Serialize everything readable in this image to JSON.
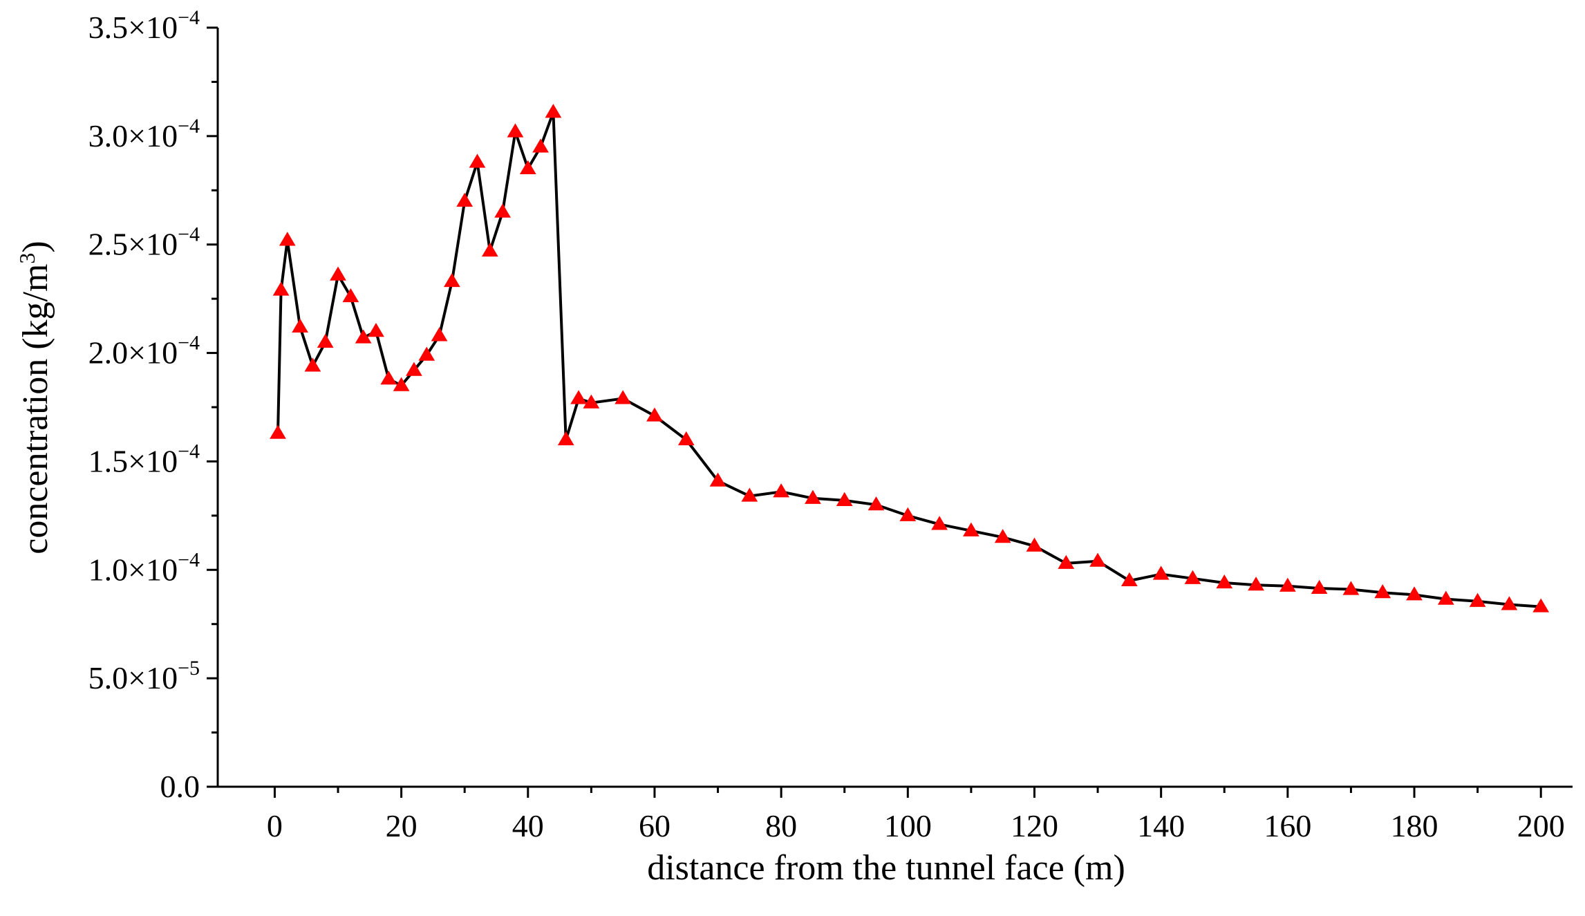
{
  "chart_data": {
    "type": "line",
    "xlabel": "distance from the tunnel face (m)",
    "ylabel_main": "concentration (kg/m",
    "ylabel_sup": "3",
    "ylabel_close": ")",
    "xlim": [
      -9,
      205
    ],
    "ylim": [
      0,
      0.00035
    ],
    "x_ticks": [
      0,
      20,
      40,
      60,
      80,
      100,
      120,
      140,
      160,
      180,
      200
    ],
    "y_ticks": [
      {
        "value": 0,
        "label": "0.0",
        "exp": ""
      },
      {
        "value": 5e-05,
        "label": "5.0×10",
        "exp": "−5"
      },
      {
        "value": 0.0001,
        "label": "1.0×10",
        "exp": "−4"
      },
      {
        "value": 0.00015,
        "label": "1.5×10",
        "exp": "−4"
      },
      {
        "value": 0.0002,
        "label": "2.0×10",
        "exp": "−4"
      },
      {
        "value": 0.00025,
        "label": "2.5×10",
        "exp": "−4"
      },
      {
        "value": 0.0003,
        "label": "3.0×10",
        "exp": "−4"
      },
      {
        "value": 0.00035,
        "label": "3.5×10",
        "exp": "−4"
      }
    ],
    "grid": false,
    "line_color": "#000000",
    "marker_color": "#ff0000",
    "marker": "triangle",
    "series": [
      {
        "x": [
          0.5,
          1,
          2,
          4,
          6,
          8,
          10,
          12,
          14,
          16,
          18,
          20,
          22,
          24,
          26,
          28,
          30,
          32,
          34,
          36,
          38,
          40,
          42,
          44,
          46,
          48,
          50,
          55,
          60,
          65,
          70,
          75,
          80,
          85,
          90,
          95,
          100,
          105,
          110,
          115,
          120,
          125,
          130,
          135,
          140,
          145,
          150,
          155,
          160,
          165,
          170,
          175,
          180,
          185,
          190,
          195,
          200
        ],
        "y": [
          0.000163,
          0.000229,
          0.000252,
          0.000212,
          0.000194,
          0.000205,
          0.000236,
          0.000226,
          0.000207,
          0.00021,
          0.000188,
          0.000185,
          0.000192,
          0.000199,
          0.000208,
          0.000233,
          0.00027,
          0.000288,
          0.000247,
          0.000265,
          0.000302,
          0.000285,
          0.000295,
          0.000311,
          0.00016,
          0.000179,
          0.000177,
          0.000179,
          0.000171,
          0.00016,
          0.000141,
          0.000134,
          0.000136,
          0.000133,
          0.000132,
          0.00013,
          0.000125,
          0.000121,
          0.000118,
          0.000115,
          0.000111,
          0.000103,
          0.000104,
          9.5e-05,
          9.8e-05,
          9.6e-05,
          9.4e-05,
          9.3e-05,
          9.25e-05,
          9.15e-05,
          9.1e-05,
          8.95e-05,
          8.85e-05,
          8.65e-05,
          8.55e-05,
          8.4e-05,
          8.3e-05
        ]
      }
    ]
  }
}
